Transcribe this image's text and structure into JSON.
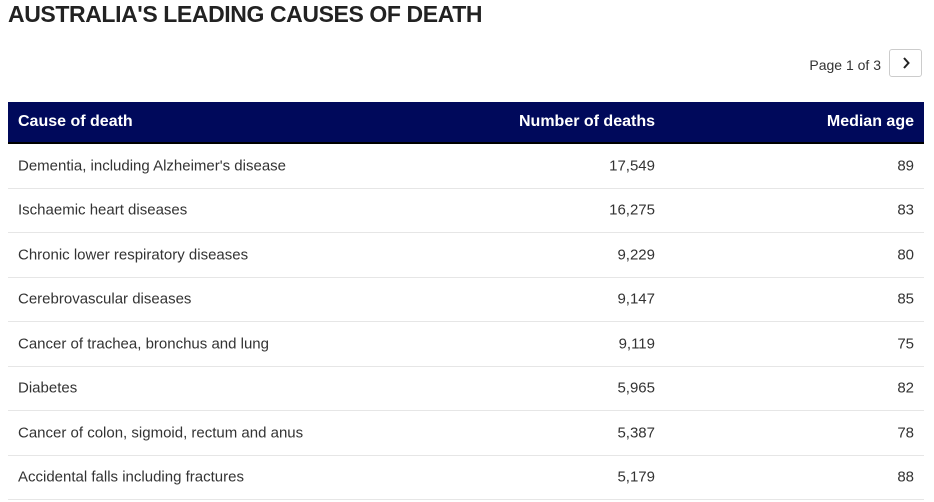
{
  "header": {
    "title": "AUSTRALIA'S LEADING CAUSES OF DEATH",
    "pagination": "Page 1 of 3"
  },
  "table": {
    "columns": [
      "Cause of death",
      "Number of deaths",
      "Median age"
    ],
    "rows": [
      [
        "Dementia, including Alzheimer's disease",
        "17,549",
        "89"
      ],
      [
        "Ischaemic heart diseases",
        "16,275",
        "83"
      ],
      [
        "Chronic lower respiratory diseases",
        "9,229",
        "80"
      ],
      [
        "Cerebrovascular diseases",
        "9,147",
        "85"
      ],
      [
        "Cancer of trachea, bronchus and lung",
        "9,119",
        "75"
      ],
      [
        "Diabetes",
        "5,965",
        "82"
      ],
      [
        "Cancer of colon, sigmoid, rectum and anus",
        "5,387",
        "78"
      ],
      [
        "Accidental falls including fractures",
        "5,179",
        "88"
      ]
    ]
  }
}
